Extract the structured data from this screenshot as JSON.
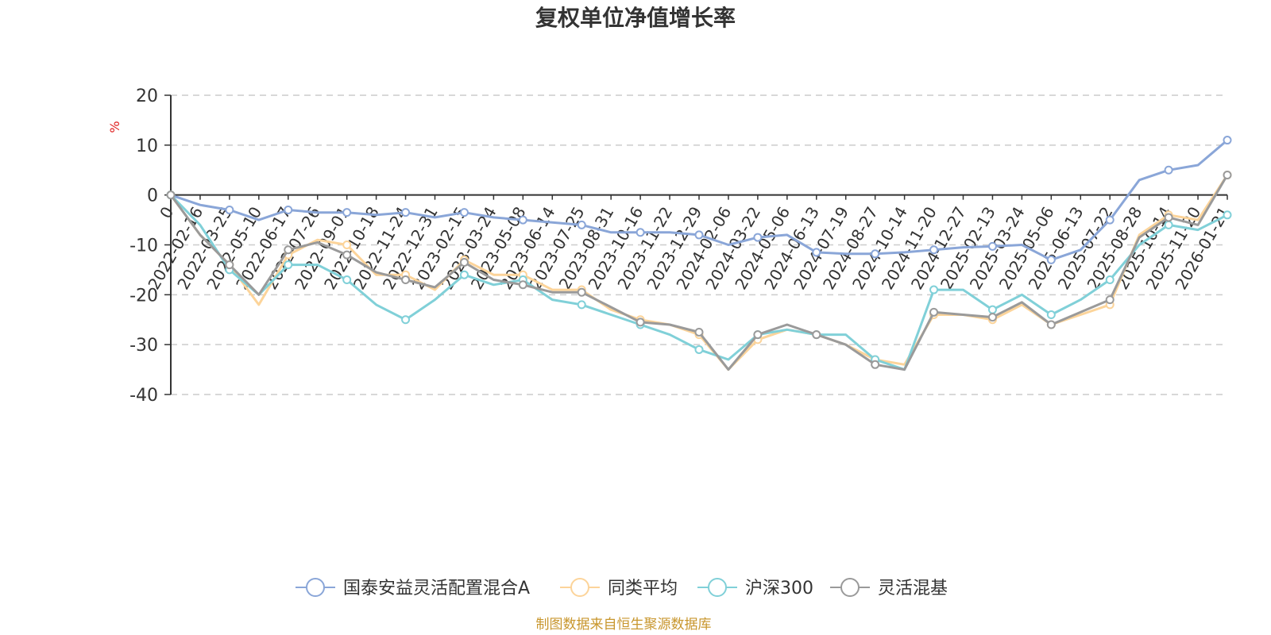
{
  "chart_data": {
    "type": "line",
    "title": "复权单位净值增长率",
    "ylabel": "%",
    "ylim": [
      -40,
      20
    ],
    "yticks": [
      "20",
      "10",
      "0",
      "-10",
      "-20",
      "-30",
      "-40"
    ],
    "grid": true,
    "legend_position": "bottom",
    "categories": [
      "0",
      "2022-02-16",
      "2022-03-25",
      "2022-05-10",
      "2022-06-17",
      "2022-07-26",
      "2022-09-01",
      "2022-10-18",
      "2022-11-24",
      "2022-12-31",
      "2023-02-15",
      "2023-03-24",
      "2023-05-08",
      "2023-06-14",
      "2023-07-25",
      "2023-08-31",
      "2023-10-16",
      "2023-11-22",
      "2023-12-29",
      "2024-02-06",
      "2024-03-22",
      "2024-05-06",
      "2024-06-13",
      "2024-07-19",
      "2024-08-27",
      "2024-10-14",
      "2024-11-20",
      "2024-12-27",
      "2025-02-13",
      "2025-03-24",
      "2025-05-06",
      "2025-06-13",
      "2025-07-22",
      "2025-08-28",
      "2025-10-14",
      "2025-11-20",
      "2026-01-21"
    ],
    "series": [
      {
        "name": "国泰安益灵活配置混合A",
        "color": "#8aa6d8",
        "values": [
          0,
          -2,
          -3,
          -5,
          -3,
          -3.5,
          -3.5,
          -4,
          -3.5,
          -4.5,
          -3.5,
          -4.5,
          -5,
          -5.5,
          -6,
          -7.5,
          -7.5,
          -7.5,
          -8,
          -10,
          -8.5,
          -8,
          -11.5,
          -11.8,
          -11.8,
          -11.5,
          -11,
          -10.5,
          -10.3,
          -10,
          -13,
          -11,
          -5,
          3,
          5,
          6,
          11
        ]
      },
      {
        "name": "同类平均",
        "color": "#fcd49a",
        "values": [
          0,
          -8,
          -14,
          -22,
          -12,
          -9,
          -10,
          -16,
          -16,
          -19,
          -13,
          -16,
          -16,
          -19,
          -19,
          -23,
          -25,
          -26,
          -28,
          -35,
          -29,
          -27,
          -28,
          -30,
          -33,
          -34,
          -24,
          -24,
          -25,
          -22,
          -26,
          -24,
          -22,
          -8,
          -4,
          -5,
          4
        ]
      },
      {
        "name": "沪深300",
        "color": "#80d0d8",
        "values": [
          0,
          -6,
          -15,
          -20,
          -14,
          -14,
          -17,
          -22,
          -25,
          -21,
          -16,
          -18,
          -17,
          -21,
          -22,
          -24,
          -26,
          -28,
          -31,
          -33,
          -28,
          -27,
          -28,
          -28,
          -33,
          -35,
          -19,
          -19,
          -23,
          -20,
          -24,
          -21,
          -17,
          -10,
          -6,
          -7,
          -4
        ]
      },
      {
        "name": "灵活混基",
        "color": "#9a9a9a",
        "values": [
          0,
          -8,
          -14,
          -20,
          -11,
          -9.5,
          -12,
          -15.5,
          -17,
          -18.5,
          -13.5,
          -17,
          -18,
          -19.5,
          -19.5,
          -22.5,
          -25.5,
          -26,
          -27.5,
          -35,
          -28,
          -26,
          -28,
          -30,
          -34,
          -35,
          -23.5,
          -24,
          -24.5,
          -21.5,
          -26,
          -23.5,
          -21,
          -8.5,
          -4.5,
          -6,
          4
        ]
      }
    ]
  },
  "source_note": "制图数据来自恒生聚源数据库",
  "colors": {
    "title": "#333333",
    "axis": "#333333",
    "grid": "#cccccc",
    "unit": "#e02020",
    "source": "#c8962d"
  }
}
